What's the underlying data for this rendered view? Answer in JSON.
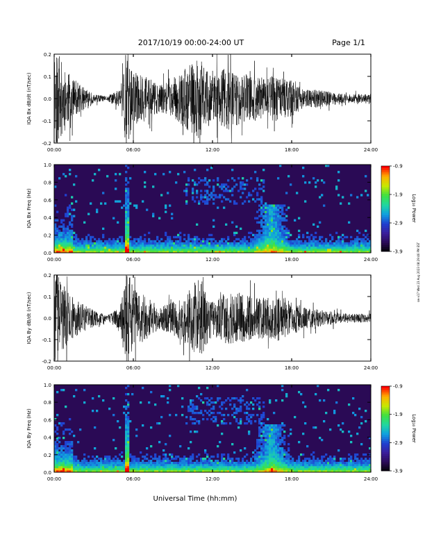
{
  "header": {
    "title": "2017/10/19  00:00-24:00 UT",
    "page": "Page 1/1"
  },
  "footer": {
    "xlabel": "Universal Time (hh:mm)"
  },
  "side_stamp": "sw-v17 Wed 23 Aug 2023 08:29:46 PM EST",
  "colors": {
    "trace": "#000000",
    "background_spec": "#2a0a55",
    "colormap": [
      "#000000",
      "#2a0a55",
      "#3a1d9a",
      "#2040d0",
      "#10a0e0",
      "#20d8a0",
      "#40e040",
      "#c8e800",
      "#ffb000",
      "#ff0000"
    ]
  },
  "chart_data": [
    {
      "type": "line",
      "ylabel": "IQA Bx dB/dt (nT/sec)",
      "ylim": [
        -0.2,
        0.2
      ],
      "yticks": [
        "-0.2",
        "-0.1",
        "0.0",
        "0.1",
        "0.2"
      ],
      "xticks": [
        "00:00",
        "06:00",
        "12:00",
        "18:00",
        "24:00"
      ],
      "xlim_hours": [
        0,
        24
      ],
      "envelope_hours": [
        0,
        1,
        2,
        3,
        4,
        5,
        5.5,
        6,
        7,
        8,
        9,
        10,
        11,
        12,
        13,
        14,
        15,
        16,
        17,
        18,
        19,
        20,
        21,
        22,
        23,
        24
      ],
      "envelope_amplitude": [
        0.24,
        0.12,
        0.06,
        0.02,
        0.01,
        0.05,
        0.24,
        0.12,
        0.1,
        0.06,
        0.08,
        0.14,
        0.18,
        0.1,
        0.14,
        0.12,
        0.1,
        0.1,
        0.1,
        0.08,
        0.04,
        0.04,
        0.03,
        0.02,
        0.02,
        0.02
      ]
    },
    {
      "type": "heatmap",
      "ylabel": "IQA Bx Freq (Hz)",
      "ylim": [
        0,
        1.0
      ],
      "yticks": [
        "0.0",
        "0.2",
        "0.4",
        "0.6",
        "0.8",
        "1.0"
      ],
      "xticks": [
        "00:00",
        "06:00",
        "12:00",
        "18:00",
        "24:00"
      ],
      "colorbar": {
        "label": "Log₁₀ Power",
        "ticks": [
          "-0.9",
          "-1.9",
          "-2.9",
          "-3.9"
        ],
        "range": [
          -3.9,
          -0.9
        ]
      }
    },
    {
      "type": "line",
      "ylabel": "IQA By dB/dt (nT/sec)",
      "ylim": [
        -0.2,
        0.2
      ],
      "yticks": [
        "-0.2",
        "-0.1",
        "0.0",
        "0.1",
        "0.2"
      ],
      "xticks": [
        "00:00",
        "06:00",
        "12:00",
        "18:00",
        "24:00"
      ],
      "xlim_hours": [
        0,
        24
      ],
      "envelope_hours": [
        0,
        1,
        2,
        3,
        4,
        5,
        5.5,
        6,
        7,
        8,
        9,
        10,
        11,
        12,
        13,
        14,
        15,
        16,
        17,
        18,
        19,
        20,
        21,
        22,
        23,
        24
      ],
      "envelope_amplitude": [
        0.24,
        0.12,
        0.07,
        0.04,
        0.01,
        0.06,
        0.24,
        0.14,
        0.1,
        0.05,
        0.08,
        0.12,
        0.2,
        0.08,
        0.12,
        0.12,
        0.1,
        0.1,
        0.1,
        0.08,
        0.05,
        0.04,
        0.03,
        0.02,
        0.02,
        0.02
      ]
    },
    {
      "type": "heatmap",
      "ylabel": "IQA By Freq (Hz)",
      "ylim": [
        0,
        1.0
      ],
      "yticks": [
        "0.0",
        "0.2",
        "0.4",
        "0.6",
        "0.8",
        "1.0"
      ],
      "xticks": [
        "00:00",
        "06:00",
        "12:00",
        "18:00",
        "24:00"
      ],
      "colorbar": {
        "label": "Log₁₀ Power",
        "ticks": [
          "-0.9",
          "-1.9",
          "-2.9",
          "-3.9"
        ],
        "range": [
          -3.9,
          -0.9
        ]
      }
    }
  ]
}
